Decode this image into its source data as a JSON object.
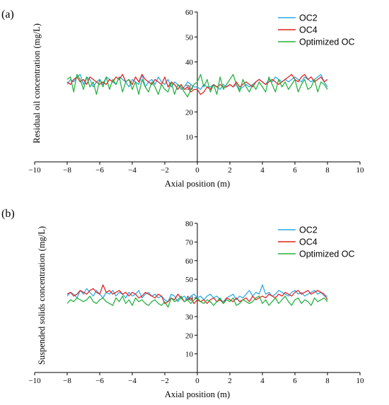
{
  "colors": {
    "OC2": "#29a8e6",
    "OC4": "#e02020",
    "Optimized OC": "#20b040"
  },
  "chart_data": [
    {
      "panel_label": "(a)",
      "type": "line",
      "title": "",
      "xlabel": "Axial position (m)",
      "ylabel": "Residual oil concentration (mg/L)",
      "xlim": [
        -10,
        10
      ],
      "ylim": [
        0,
        60
      ],
      "xticks": [
        "−10",
        "−8",
        "−6",
        "−4",
        "−2",
        "0",
        "2",
        "4",
        "6",
        "8",
        "10"
      ],
      "yticks": [
        "10",
        "20",
        "30",
        "40",
        "50",
        "60"
      ],
      "legend": "top-right",
      "grid": false,
      "x": [
        -8.0,
        -7.8,
        -7.6,
        -7.4,
        -7.2,
        -7.0,
        -6.8,
        -6.6,
        -6.4,
        -6.2,
        -6.0,
        -5.8,
        -5.6,
        -5.4,
        -5.2,
        -5.0,
        -4.8,
        -4.6,
        -4.4,
        -4.2,
        -4.0,
        -3.8,
        -3.6,
        -3.4,
        -3.2,
        -3.0,
        -2.8,
        -2.6,
        -2.4,
        -2.2,
        -2.0,
        -1.8,
        -1.6,
        -1.4,
        -1.2,
        -1.0,
        -0.8,
        -0.6,
        -0.4,
        -0.2,
        0.0,
        0.2,
        0.4,
        0.6,
        0.8,
        1.0,
        1.2,
        1.4,
        1.6,
        1.8,
        2.0,
        2.2,
        2.4,
        2.6,
        2.8,
        3.0,
        3.2,
        3.4,
        3.6,
        3.8,
        4.0,
        4.2,
        4.4,
        4.6,
        4.8,
        5.0,
        5.2,
        5.4,
        5.6,
        5.8,
        6.0,
        6.2,
        6.4,
        6.6,
        6.8,
        7.0,
        7.2,
        7.4,
        7.6,
        7.8,
        8.0
      ],
      "series": [
        {
          "name": "OC2",
          "values": [
            31,
            33,
            32,
            34,
            35,
            31,
            34,
            33,
            30,
            32,
            33,
            31,
            34,
            33,
            32,
            31,
            34,
            33,
            32,
            30,
            33,
            32,
            31,
            35,
            30,
            32,
            33,
            31,
            34,
            32,
            31,
            33,
            30,
            32,
            31,
            29,
            30,
            32,
            31,
            30,
            30,
            29,
            31,
            30,
            30,
            31,
            30,
            29,
            31,
            30,
            31,
            30,
            31,
            29,
            30,
            31,
            30,
            31,
            32,
            33,
            32,
            31,
            33,
            32,
            34,
            33,
            32,
            33,
            32,
            33,
            34,
            33,
            32,
            34,
            33,
            32,
            33,
            34,
            35,
            32,
            30
          ]
        },
        {
          "name": "OC4",
          "values": [
            32,
            31,
            33,
            34,
            32,
            33,
            31,
            34,
            33,
            32,
            31,
            32,
            31,
            33,
            32,
            34,
            33,
            35,
            32,
            33,
            31,
            34,
            32,
            35,
            33,
            32,
            31,
            33,
            32,
            31,
            34,
            30,
            32,
            31,
            29,
            31,
            29,
            30,
            28,
            29,
            29,
            27,
            28,
            30,
            29,
            31,
            30,
            31,
            30,
            30,
            31,
            30,
            32,
            30,
            31,
            32,
            31,
            30,
            32,
            33,
            32,
            31,
            32,
            33,
            32,
            31,
            32,
            33,
            34,
            35,
            33,
            32,
            34,
            35,
            33,
            34,
            32,
            33,
            34,
            32,
            33
          ]
        },
        {
          "name": "Optimized OC",
          "values": [
            33,
            34,
            28,
            35,
            33,
            29,
            34,
            30,
            32,
            27,
            33,
            30,
            34,
            29,
            33,
            31,
            34,
            28,
            32,
            33,
            29,
            32,
            27,
            33,
            30,
            28,
            32,
            30,
            27,
            31,
            29,
            28,
            32,
            27,
            31,
            30,
            28,
            26,
            29,
            31,
            32,
            35,
            30,
            33,
            28,
            31,
            27,
            34,
            29,
            31,
            33,
            35,
            31,
            28,
            33,
            30,
            28,
            31,
            29,
            32,
            30,
            28,
            34,
            31,
            28,
            33,
            30,
            32,
            29,
            31,
            33,
            28,
            31,
            33,
            29,
            30,
            33,
            28,
            32,
            31,
            29
          ]
        }
      ]
    },
    {
      "panel_label": "(b)",
      "type": "line",
      "title": "",
      "xlabel": "Axial position (m)",
      "ylabel": "Suspended solids concentration (mg/L)",
      "xlim": [
        -10,
        10
      ],
      "ylim": [
        0,
        80
      ],
      "xticks": [
        "−10",
        "−8",
        "−6",
        "−4",
        "−2",
        "0",
        "2",
        "4",
        "6",
        "8",
        "10"
      ],
      "yticks": [
        "10",
        "20",
        "30",
        "40",
        "50",
        "60",
        "70",
        "80"
      ],
      "legend": "top-right",
      "grid": false,
      "x": [
        -8.0,
        -7.8,
        -7.6,
        -7.4,
        -7.2,
        -7.0,
        -6.8,
        -6.6,
        -6.4,
        -6.2,
        -6.0,
        -5.8,
        -5.6,
        -5.4,
        -5.2,
        -5.0,
        -4.8,
        -4.6,
        -4.4,
        -4.2,
        -4.0,
        -3.8,
        -3.6,
        -3.4,
        -3.2,
        -3.0,
        -2.8,
        -2.6,
        -2.4,
        -2.2,
        -2.0,
        -1.8,
        -1.6,
        -1.4,
        -1.2,
        -1.0,
        -0.8,
        -0.6,
        -0.4,
        -0.2,
        0.0,
        0.2,
        0.4,
        0.6,
        0.8,
        1.0,
        1.2,
        1.4,
        1.6,
        1.8,
        2.0,
        2.2,
        2.4,
        2.6,
        2.8,
        3.0,
        3.2,
        3.4,
        3.6,
        3.8,
        4.0,
        4.2,
        4.4,
        4.6,
        4.8,
        5.0,
        5.2,
        5.4,
        5.6,
        5.8,
        6.0,
        6.2,
        6.4,
        6.6,
        6.8,
        7.0,
        7.2,
        7.4,
        7.6,
        7.8,
        8.0
      ],
      "series": [
        {
          "name": "OC2",
          "values": [
            41,
            43,
            42,
            40,
            44,
            42,
            45,
            43,
            41,
            44,
            42,
            40,
            43,
            42,
            44,
            41,
            43,
            42,
            40,
            43,
            41,
            42,
            44,
            40,
            42,
            43,
            41,
            42,
            40,
            41,
            39,
            38,
            42,
            41,
            38,
            40,
            41,
            39,
            41,
            42,
            40,
            41,
            39,
            41,
            42,
            40,
            41,
            39,
            38,
            40,
            41,
            42,
            39,
            41,
            40,
            42,
            44,
            41,
            43,
            42,
            47,
            42,
            43,
            41,
            42,
            44,
            43,
            42,
            41,
            43,
            44,
            42,
            43,
            41,
            42,
            43,
            44,
            42,
            43,
            41,
            41
          ]
        },
        {
          "name": "OC4",
          "values": [
            42,
            43,
            41,
            42,
            44,
            43,
            42,
            44,
            45,
            43,
            42,
            47,
            43,
            44,
            42,
            43,
            44,
            42,
            43,
            41,
            43,
            42,
            40,
            41,
            43,
            42,
            41,
            40,
            42,
            41,
            37,
            38,
            40,
            39,
            42,
            40,
            38,
            39,
            40,
            37,
            39,
            38,
            39,
            37,
            39,
            40,
            38,
            39,
            37,
            40,
            39,
            38,
            40,
            38,
            39,
            40,
            38,
            41,
            39,
            40,
            41,
            40,
            42,
            41,
            40,
            42,
            41,
            43,
            42,
            41,
            43,
            44,
            42,
            43,
            44,
            42,
            43,
            44,
            43,
            42,
            39
          ]
        },
        {
          "name": "Optimized OC",
          "values": [
            37,
            39,
            38,
            40,
            39,
            38,
            39,
            41,
            38,
            37,
            39,
            40,
            38,
            37,
            36,
            40,
            38,
            41,
            37,
            39,
            36,
            40,
            38,
            39,
            37,
            36,
            38,
            39,
            37,
            36,
            38,
            35,
            40,
            38,
            39,
            41,
            38,
            39,
            37,
            39,
            40,
            38,
            37,
            39,
            38,
            36,
            38,
            40,
            37,
            39,
            38,
            40,
            36,
            37,
            39,
            38,
            37,
            38,
            40,
            41,
            37,
            39,
            36,
            38,
            40,
            37,
            39,
            41,
            38,
            36,
            39,
            40,
            37,
            39,
            38,
            36,
            40,
            38,
            39,
            40,
            38
          ]
        }
      ]
    }
  ]
}
